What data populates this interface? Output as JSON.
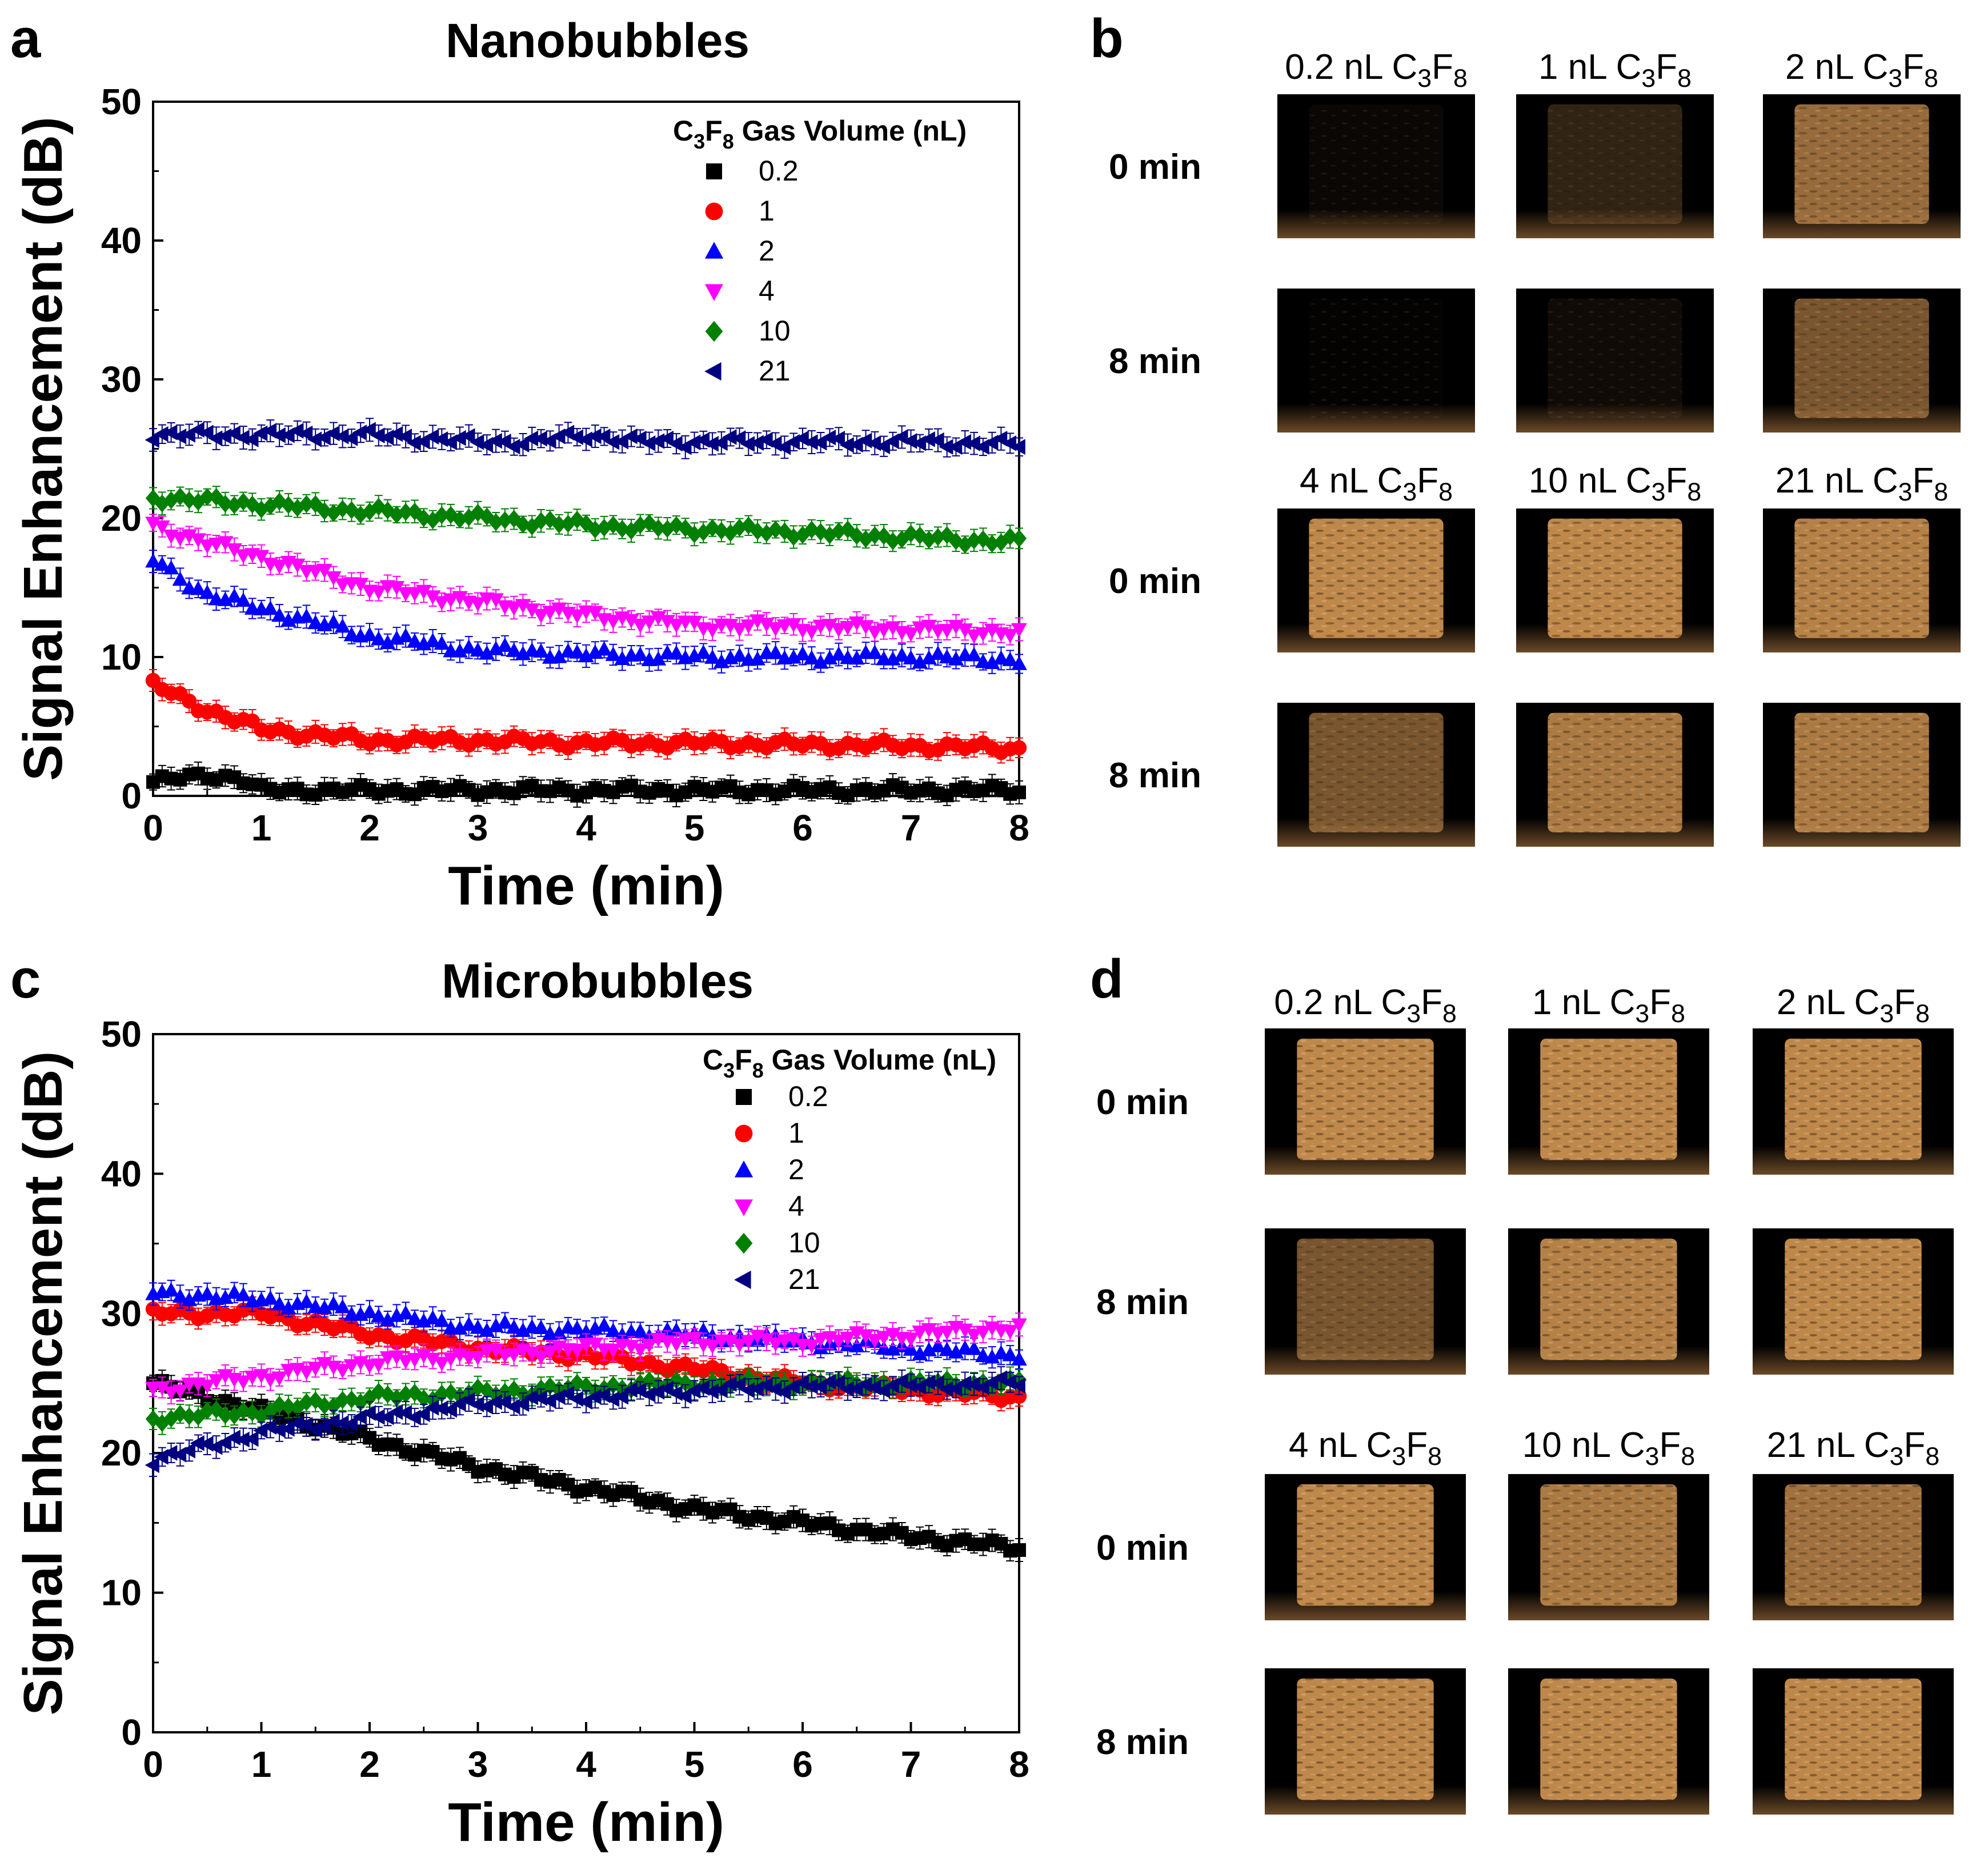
{
  "chart_data": [
    {
      "type": "scatter",
      "panel_letter": "a",
      "title": "Nanobubbles",
      "xlabel": "Time (min)",
      "ylabel": "Signal Enhancement (dB)",
      "xlim": [
        0,
        8
      ],
      "ylim": [
        0,
        50
      ],
      "xticks": [
        "0",
        "1",
        "2",
        "3",
        "4",
        "5",
        "6",
        "7",
        "8"
      ],
      "yticks": [
        "0",
        "10",
        "20",
        "30",
        "40",
        "50"
      ],
      "grid": false,
      "legend_position": "top-right",
      "legend_title": {
        "pre": "C",
        "sub1": "3",
        "mid": "F",
        "sub2": "8",
        "post": " Gas Volume (nL)"
      },
      "series": [
        {
          "name": "0.2",
          "marker": "square",
          "color": "#000000",
          "keypoints": [
            [
              0,
              1.0
            ],
            [
              0.5,
              1.5
            ],
            [
              0.8,
              1.3
            ],
            [
              1.0,
              0.4
            ],
            [
              2,
              0.4
            ],
            [
              8,
              0.4
            ]
          ]
        },
        {
          "name": "1",
          "marker": "circle",
          "color": "#ff0000",
          "keypoints": [
            [
              0,
              8.0
            ],
            [
              0.5,
              6.2
            ],
            [
              1.0,
              4.8
            ],
            [
              2.0,
              4.0
            ],
            [
              3.0,
              4.0
            ],
            [
              4.0,
              3.8
            ],
            [
              5.0,
              3.8
            ],
            [
              6.0,
              3.7
            ],
            [
              7.0,
              3.6
            ],
            [
              8.0,
              3.4
            ]
          ]
        },
        {
          "name": "2",
          "marker": "triangle-up",
          "color": "#0000ff",
          "keypoints": [
            [
              0,
              17.0
            ],
            [
              0.5,
              14.5
            ],
            [
              1.0,
              13.5
            ],
            [
              2.0,
              11.5
            ],
            [
              3.0,
              10.5
            ],
            [
              4.0,
              10.2
            ],
            [
              5.0,
              10.0
            ],
            [
              6.0,
              10.0
            ],
            [
              7.0,
              10.0
            ],
            [
              8.0,
              9.8
            ]
          ]
        },
        {
          "name": "4",
          "marker": "triangle-down",
          "color": "#ff00ff",
          "keypoints": [
            [
              0,
              19.5
            ],
            [
              0.5,
              18.2
            ],
            [
              1.0,
              17.2
            ],
            [
              2.0,
              15.0
            ],
            [
              3.0,
              14.0
            ],
            [
              4.0,
              13.0
            ],
            [
              5.0,
              12.3
            ],
            [
              6.0,
              12.2
            ],
            [
              7.0,
              12.0
            ],
            [
              8.0,
              11.8
            ]
          ]
        },
        {
          "name": "10",
          "marker": "diamond",
          "color": "#008000",
          "keypoints": [
            [
              0,
              21.5
            ],
            [
              1.0,
              21.0
            ],
            [
              2.0,
              20.5
            ],
            [
              3.0,
              20.0
            ],
            [
              4.0,
              19.5
            ],
            [
              5.0,
              19.2
            ],
            [
              6.0,
              19.0
            ],
            [
              7.0,
              18.6
            ],
            [
              8.0,
              18.3
            ]
          ]
        },
        {
          "name": "21",
          "marker": "triangle-left",
          "color": "#000080",
          "keypoints": [
            [
              0,
              26.0
            ],
            [
              1.0,
              26.0
            ],
            [
              2.0,
              26.0
            ],
            [
              3.0,
              25.5
            ],
            [
              3.5,
              25.5
            ],
            [
              4.0,
              26.0
            ],
            [
              4.5,
              25.5
            ],
            [
              5.0,
              25.5
            ],
            [
              6.0,
              25.5
            ],
            [
              7.0,
              25.5
            ],
            [
              8.0,
              25.3
            ]
          ]
        }
      ]
    },
    {
      "type": "scatter",
      "panel_letter": "c",
      "title": "Microbubbles",
      "xlabel": "Time (min)",
      "ylabel": "Signal Enhancement (dB)",
      "xlim": [
        0,
        8
      ],
      "ylim": [
        0,
        50
      ],
      "xticks": [
        "0",
        "1",
        "2",
        "3",
        "4",
        "5",
        "6",
        "7",
        "8"
      ],
      "yticks": [
        "0",
        "10",
        "20",
        "30",
        "40",
        "50"
      ],
      "grid": false,
      "legend_position": "top-right",
      "legend_title": {
        "pre": "C",
        "sub1": "3",
        "mid": "F",
        "sub2": "8",
        "post": " Gas Volume (nL)"
      },
      "series": [
        {
          "name": "0.2",
          "marker": "square",
          "color": "#000000",
          "keypoints": [
            [
              0,
              25.0
            ],
            [
              0.5,
              24.0
            ],
            [
              1.0,
              23.0
            ],
            [
              1.5,
              22.0
            ],
            [
              2.0,
              21.0
            ],
            [
              3.0,
              19.0
            ],
            [
              4.0,
              17.5
            ],
            [
              5.0,
              16.0
            ],
            [
              6.0,
              15.0
            ],
            [
              7.0,
              14.0
            ],
            [
              8.0,
              13.2
            ]
          ]
        },
        {
          "name": "1",
          "marker": "circle",
          "color": "#ff0000",
          "keypoints": [
            [
              0,
              30.0
            ],
            [
              1.0,
              30.0
            ],
            [
              2.0,
              28.5
            ],
            [
              3.0,
              27.5
            ],
            [
              4.0,
              27.0
            ],
            [
              5.0,
              26.0
            ],
            [
              6.0,
              25.0
            ],
            [
              7.0,
              24.5
            ],
            [
              8.0,
              24.0
            ]
          ]
        },
        {
          "name": "2",
          "marker": "triangle-up",
          "color": "#0000ff",
          "keypoints": [
            [
              0,
              31.5
            ],
            [
              1.0,
              31.0
            ],
            [
              2.0,
              30.0
            ],
            [
              3.0,
              29.0
            ],
            [
              4.0,
              28.8
            ],
            [
              5.0,
              28.5
            ],
            [
              6.0,
              28.0
            ],
            [
              7.0,
              27.5
            ],
            [
              8.0,
              27.0
            ]
          ]
        },
        {
          "name": "4",
          "marker": "triangle-down",
          "color": "#ff00ff",
          "keypoints": [
            [
              0,
              24.5
            ],
            [
              1.0,
              25.5
            ],
            [
              2.0,
              26.5
            ],
            [
              3.0,
              27.0
            ],
            [
              4.0,
              27.5
            ],
            [
              5.0,
              28.0
            ],
            [
              6.0,
              28.0
            ],
            [
              7.0,
              28.5
            ],
            [
              8.0,
              29.0
            ]
          ]
        },
        {
          "name": "10",
          "marker": "diamond",
          "color": "#008000",
          "keypoints": [
            [
              0,
              22.5
            ],
            [
              1.0,
              23.0
            ],
            [
              2.0,
              24.0
            ],
            [
              3.0,
              24.3
            ],
            [
              4.0,
              24.7
            ],
            [
              5.0,
              25.0
            ],
            [
              6.0,
              25.0
            ],
            [
              7.0,
              25.0
            ],
            [
              8.0,
              25.0
            ]
          ]
        },
        {
          "name": "21",
          "marker": "triangle-left",
          "color": "#000080",
          "keypoints": [
            [
              0,
              19.5
            ],
            [
              1.0,
              21.5
            ],
            [
              1.5,
              22.0
            ],
            [
              2.0,
              22.5
            ],
            [
              3.0,
              23.5
            ],
            [
              4.0,
              24.0
            ],
            [
              5.0,
              24.5
            ],
            [
              6.0,
              24.8
            ],
            [
              7.0,
              24.8
            ],
            [
              8.0,
              25.0
            ]
          ]
        }
      ]
    }
  ],
  "image_panels": [
    {
      "panel_letter": "b",
      "column_labels_top": [
        "0.2 nL C3F8",
        "1 nL C3F8",
        "2 nL C3F8"
      ],
      "column_labels_bottom": [
        "4 nL C3F8",
        "10 nL C3F8",
        "21 nL C3F8"
      ],
      "row_labels": [
        "0 min",
        "8 min",
        "0 min",
        "8 min"
      ],
      "intensity": [
        [
          0.05,
          0.25,
          0.75
        ],
        [
          0.02,
          0.08,
          0.6
        ],
        [
          0.95,
          0.95,
          0.9
        ],
        [
          0.6,
          0.85,
          0.85
        ]
      ]
    },
    {
      "panel_letter": "d",
      "column_labels_top": [
        "0.2 nL C3F8",
        "1 nL C3F8",
        "2 nL C3F8"
      ],
      "column_labels_bottom": [
        "4 nL C3F8",
        "10 nL C3F8",
        "21 nL C3F8"
      ],
      "row_labels": [
        "0 min",
        "8 min",
        "0 min",
        "8 min"
      ],
      "intensity": [
        [
          0.95,
          0.95,
          0.95
        ],
        [
          0.6,
          0.9,
          0.95
        ],
        [
          0.95,
          0.85,
          0.8
        ],
        [
          0.95,
          0.95,
          0.95
        ]
      ]
    }
  ]
}
